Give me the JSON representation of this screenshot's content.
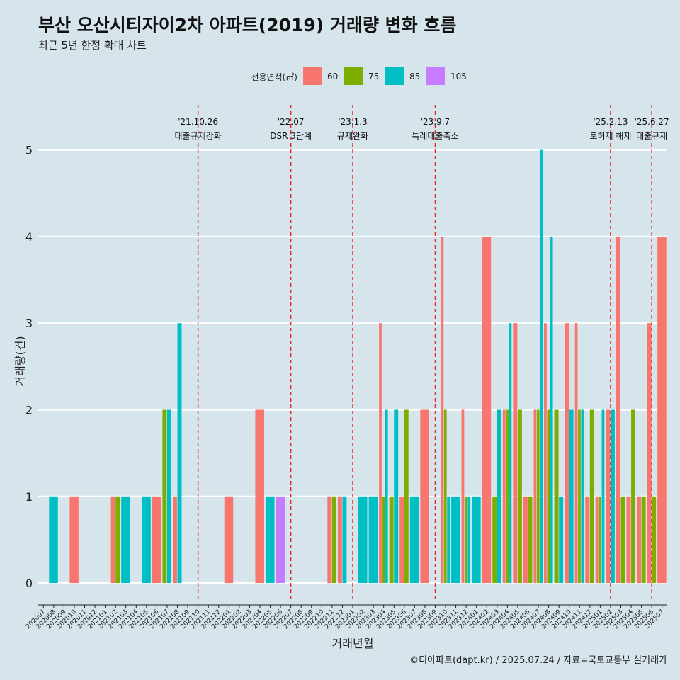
{
  "chart_data": {
    "type": "bar",
    "title": "부산 오산시티자이2차 아파트(2019) 거래량 변화 흐름",
    "subtitle": "최근 5년 한정 확대 차트",
    "xlabel": "거래년월",
    "ylabel": "거래량(건)",
    "ylim": [
      -0.22,
      5.52
    ],
    "yticks": [
      0,
      1,
      2,
      3,
      4,
      5
    ],
    "legend_title": "전용면적(㎡)",
    "legend_position": "top",
    "caption": "©디아파트(dapt.kr) / 2025.07.24 / 자료=국토교통부 실거래가",
    "categories": [
      "202007",
      "202008",
      "202009",
      "202010",
      "202011",
      "202012",
      "202101",
      "202102",
      "202103",
      "202104",
      "202105",
      "202106",
      "202107",
      "202108",
      "202109",
      "202110",
      "202111",
      "202112",
      "202201",
      "202202",
      "202203",
      "202204",
      "202205",
      "202206",
      "202207",
      "202208",
      "202209",
      "202210",
      "202211",
      "202212",
      "202301",
      "202302",
      "202303",
      "202304",
      "202305",
      "202306",
      "202307",
      "202308",
      "202309",
      "202310",
      "202311",
      "202312",
      "202401",
      "202402",
      "202403",
      "202404",
      "202405",
      "202406",
      "202407",
      "202408",
      "202409",
      "202410",
      "202411",
      "202412",
      "202501",
      "202502",
      "202503",
      "202504",
      "202505",
      "202506",
      "202507"
    ],
    "series": [
      {
        "name": "60",
        "color": "#F8766D",
        "points": [
          [
            "202010",
            1
          ],
          [
            "202102",
            1
          ],
          [
            "202106",
            1
          ],
          [
            "202108",
            1
          ],
          [
            "202201",
            1
          ],
          [
            "202204",
            2
          ],
          [
            "202211",
            1
          ],
          [
            "202212",
            1
          ],
          [
            "202304",
            3
          ],
          [
            "202306",
            1
          ],
          [
            "202308",
            2
          ],
          [
            "202310",
            4
          ],
          [
            "202312",
            2
          ],
          [
            "202402",
            4
          ],
          [
            "202404",
            2
          ],
          [
            "202405",
            3
          ],
          [
            "202406",
            1
          ],
          [
            "202407",
            2
          ],
          [
            "202408",
            3
          ],
          [
            "202410",
            3
          ],
          [
            "202411",
            3
          ],
          [
            "202412",
            1
          ],
          [
            "202501",
            1
          ],
          [
            "202502",
            2
          ],
          [
            "202503",
            4
          ],
          [
            "202504",
            1
          ],
          [
            "202505",
            1
          ],
          [
            "202506",
            3
          ],
          [
            "202507",
            4
          ]
        ]
      },
      {
        "name": "75",
        "color": "#7CAE00",
        "points": [
          [
            "202102",
            1
          ],
          [
            "202107",
            2
          ],
          [
            "202211",
            1
          ],
          [
            "202304",
            1
          ],
          [
            "202305",
            1
          ],
          [
            "202306",
            2
          ],
          [
            "202310",
            2
          ],
          [
            "202312",
            1
          ],
          [
            "202403",
            1
          ],
          [
            "202404",
            2
          ],
          [
            "202405",
            2
          ],
          [
            "202406",
            1
          ],
          [
            "202407",
            2
          ],
          [
            "202408",
            2
          ],
          [
            "202409",
            2
          ],
          [
            "202411",
            2
          ],
          [
            "202412",
            2
          ],
          [
            "202501",
            1
          ],
          [
            "202503",
            1
          ],
          [
            "202504",
            2
          ],
          [
            "202505",
            1
          ],
          [
            "202506",
            1
          ]
        ]
      },
      {
        "name": "85",
        "color": "#00BFC4",
        "points": [
          [
            "202008",
            1
          ],
          [
            "202103",
            1
          ],
          [
            "202105",
            1
          ],
          [
            "202107",
            2
          ],
          [
            "202108",
            3
          ],
          [
            "202205",
            1
          ],
          [
            "202212",
            1
          ],
          [
            "202302",
            1
          ],
          [
            "202303",
            1
          ],
          [
            "202304",
            2
          ],
          [
            "202305",
            2
          ],
          [
            "202307",
            1
          ],
          [
            "202310",
            1
          ],
          [
            "202311",
            1
          ],
          [
            "202312",
            1
          ],
          [
            "202401",
            1
          ],
          [
            "202403",
            2
          ],
          [
            "202404",
            3
          ],
          [
            "202407",
            5
          ],
          [
            "202408",
            4
          ],
          [
            "202409",
            1
          ],
          [
            "202410",
            2
          ],
          [
            "202411",
            2
          ],
          [
            "202501",
            2
          ],
          [
            "202502",
            2
          ]
        ]
      },
      {
        "name": "105",
        "color": "#C77CFF",
        "points": [
          [
            "202206",
            1
          ]
        ]
      }
    ],
    "annotations": [
      {
        "month": "202110",
        "date": "'21.10.26",
        "label": "대출규제강화"
      },
      {
        "month": "202207",
        "date": "'22.07",
        "label": "DSR 3단계"
      },
      {
        "month": "202301",
        "date": "'23.1.3",
        "label": "규제완화"
      },
      {
        "month": "202309",
        "date": "'23.9.7",
        "label": "특례대출축소"
      },
      {
        "month": "202502",
        "date": "'25.2.13",
        "label": "토허제 해제"
      },
      {
        "month": "202506",
        "date": "'25.6.27",
        "label": "대출규제"
      }
    ],
    "colors": {
      "background": "#d6e4ec",
      "grid": "#ffffff",
      "vline": "#e8292b"
    }
  }
}
